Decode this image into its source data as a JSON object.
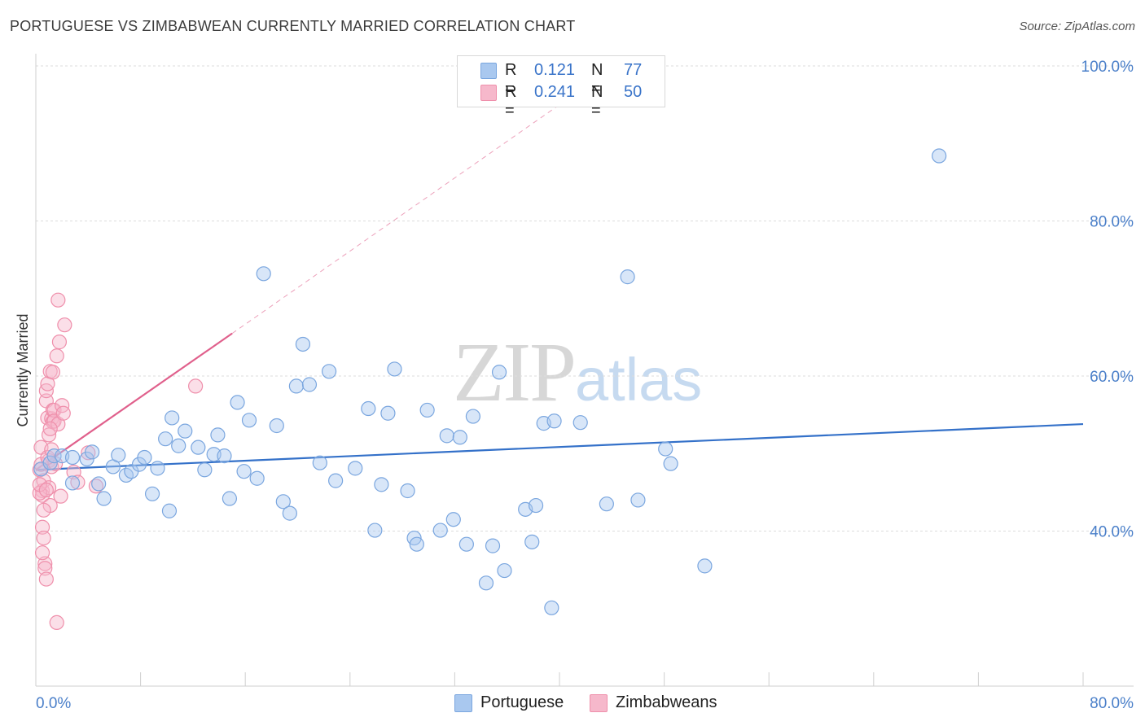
{
  "title": "PORTUGUESE VS ZIMBABWEAN CURRENTLY MARRIED CORRELATION CHART",
  "source": "Source: ZipAtlas.com",
  "watermark": {
    "zip": "ZIP",
    "atlas": "atlas"
  },
  "legend": {
    "rows": [
      {
        "r_label": "R =",
        "r_value": "0.121",
        "n_label": "N =",
        "n_value": "77",
        "color": "#a9c8ef"
      },
      {
        "r_label": "R =",
        "r_value": "0.241",
        "n_label": "N =",
        "n_value": "50",
        "color": "#f6b8cb"
      }
    ]
  },
  "bottom_legend": {
    "portuguese": "Portuguese",
    "zimbabweans": "Zimbabweans"
  },
  "chart_data": {
    "type": "scatter",
    "title": "PORTUGUESE VS ZIMBABWEAN CURRENTLY MARRIED CORRELATION CHART",
    "xlabel": "",
    "ylabel": "Currently Married",
    "xlim": [
      0,
      80
    ],
    "ylim": [
      20,
      102
    ],
    "x_tick_labels": [
      "0.0%",
      "80.0%"
    ],
    "y_ticks": [
      40,
      60,
      80,
      100
    ],
    "y_tick_labels": [
      "40.0%",
      "60.0%",
      "80.0%",
      "100.0%"
    ],
    "grid": true,
    "colors": {
      "portuguese_fill": "#a9c8ef",
      "portuguese_stroke": "#7aa6df",
      "portuguese_line": "#3471c9",
      "zimbabwean_fill": "#f6b8cb",
      "zimbabwean_stroke": "#ef8fab",
      "zimbabwean_line": "#e0608c"
    },
    "series": [
      {
        "name": "Portuguese",
        "points": [
          [
            0.4,
            48.0
          ],
          [
            1.1,
            48.8
          ],
          [
            1.4,
            49.7
          ],
          [
            2.0,
            49.7
          ],
          [
            2.8,
            49.5
          ],
          [
            2.8,
            46.2
          ],
          [
            3.9,
            49.3
          ],
          [
            4.3,
            50.2
          ],
          [
            4.8,
            46.1
          ],
          [
            5.2,
            44.2
          ],
          [
            5.9,
            48.3
          ],
          [
            6.3,
            49.8
          ],
          [
            6.9,
            47.2
          ],
          [
            7.3,
            47.7
          ],
          [
            7.9,
            48.6
          ],
          [
            8.3,
            49.5
          ],
          [
            8.9,
            44.8
          ],
          [
            9.3,
            48.1
          ],
          [
            9.9,
            51.9
          ],
          [
            10.2,
            42.6
          ],
          [
            10.4,
            54.6
          ],
          [
            10.9,
            51.0
          ],
          [
            11.4,
            52.9
          ],
          [
            12.4,
            50.8
          ],
          [
            12.9,
            47.9
          ],
          [
            13.6,
            49.9
          ],
          [
            13.9,
            52.4
          ],
          [
            14.4,
            49.7
          ],
          [
            14.8,
            44.2
          ],
          [
            15.4,
            56.6
          ],
          [
            15.9,
            47.7
          ],
          [
            16.3,
            54.3
          ],
          [
            16.9,
            46.8
          ],
          [
            17.4,
            73.2
          ],
          [
            18.4,
            53.6
          ],
          [
            18.9,
            43.8
          ],
          [
            19.4,
            42.3
          ],
          [
            19.9,
            58.7
          ],
          [
            20.4,
            64.1
          ],
          [
            20.9,
            58.9
          ],
          [
            21.7,
            48.8
          ],
          [
            22.4,
            60.6
          ],
          [
            22.9,
            46.5
          ],
          [
            24.4,
            48.1
          ],
          [
            25.4,
            55.8
          ],
          [
            25.9,
            40.1
          ],
          [
            26.4,
            46.0
          ],
          [
            26.9,
            55.2
          ],
          [
            27.4,
            60.9
          ],
          [
            28.4,
            45.2
          ],
          [
            28.9,
            39.1
          ],
          [
            29.1,
            38.3
          ],
          [
            29.9,
            55.6
          ],
          [
            30.9,
            40.1
          ],
          [
            31.4,
            52.3
          ],
          [
            31.9,
            41.5
          ],
          [
            32.4,
            52.1
          ],
          [
            32.9,
            38.3
          ],
          [
            33.4,
            54.8
          ],
          [
            34.4,
            33.3
          ],
          [
            34.9,
            38.1
          ],
          [
            35.4,
            60.5
          ],
          [
            35.8,
            34.9
          ],
          [
            37.4,
            42.8
          ],
          [
            37.9,
            38.6
          ],
          [
            38.2,
            43.3
          ],
          [
            38.8,
            53.9
          ],
          [
            39.6,
            54.2
          ],
          [
            41.6,
            54.0
          ],
          [
            43.6,
            43.5
          ],
          [
            39.4,
            30.1
          ],
          [
            45.2,
            72.8
          ],
          [
            48.1,
            50.6
          ],
          [
            48.5,
            48.7
          ],
          [
            51.1,
            35.5
          ],
          [
            69.0,
            88.4
          ],
          [
            46.0,
            44.0
          ]
        ]
      },
      {
        "name": "Zimbabweans",
        "points": [
          [
            0.3,
            47.9
          ],
          [
            0.4,
            50.8
          ],
          [
            0.5,
            45.2
          ],
          [
            0.5,
            44.6
          ],
          [
            0.6,
            46.5
          ],
          [
            0.5,
            40.5
          ],
          [
            0.6,
            39.1
          ],
          [
            0.7,
            35.8
          ],
          [
            0.7,
            35.2
          ],
          [
            0.8,
            33.8
          ],
          [
            0.8,
            56.8
          ],
          [
            0.8,
            58.1
          ],
          [
            0.9,
            59.0
          ],
          [
            0.9,
            54.6
          ],
          [
            1.0,
            52.4
          ],
          [
            1.0,
            49.1
          ],
          [
            1.0,
            45.6
          ],
          [
            1.1,
            43.3
          ],
          [
            1.1,
            60.6
          ],
          [
            1.2,
            54.5
          ],
          [
            1.2,
            48.3
          ],
          [
            1.3,
            60.5
          ],
          [
            1.3,
            55.6
          ],
          [
            1.3,
            54.1
          ],
          [
            1.4,
            55.6
          ],
          [
            1.4,
            54.2
          ],
          [
            1.5,
            48.7
          ],
          [
            1.6,
            62.6
          ],
          [
            1.7,
            53.8
          ],
          [
            1.7,
            69.8
          ],
          [
            1.8,
            64.4
          ],
          [
            1.9,
            44.5
          ],
          [
            2.0,
            56.2
          ],
          [
            2.1,
            55.2
          ],
          [
            2.2,
            66.6
          ],
          [
            2.9,
            47.6
          ],
          [
            3.2,
            46.3
          ],
          [
            4.0,
            50.1
          ],
          [
            4.6,
            45.8
          ],
          [
            12.2,
            58.7
          ],
          [
            0.3,
            44.9
          ],
          [
            0.3,
            46.0
          ],
          [
            0.4,
            48.6
          ],
          [
            0.6,
            42.7
          ],
          [
            0.9,
            49.5
          ],
          [
            1.1,
            53.2
          ],
          [
            1.2,
            50.5
          ],
          [
            0.5,
            37.2
          ],
          [
            1.6,
            28.2
          ],
          [
            0.8,
            45.3
          ]
        ]
      }
    ],
    "trend_lines": [
      {
        "series": "Portuguese",
        "x": [
          0,
          80
        ],
        "y": [
          47.9,
          53.8
        ],
        "style": "solid"
      },
      {
        "series": "Zimbabweans",
        "x": [
          0,
          15
        ],
        "y": [
          47.9,
          65.5
        ],
        "style": "solid"
      },
      {
        "series": "Zimbabweans",
        "x": [
          15,
          40
        ],
        "y": [
          65.5,
          95.0
        ],
        "style": "dashed"
      }
    ]
  }
}
